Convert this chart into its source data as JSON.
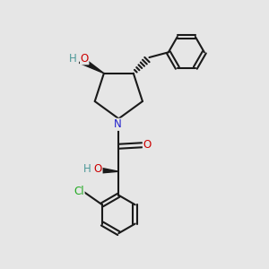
{
  "bg_color": "#e6e6e6",
  "atom_colors": {
    "C": "#1a1a1a",
    "O": "#cc0000",
    "N": "#2222cc",
    "Cl": "#22aa22",
    "H": "#4d9999"
  },
  "bond_color": "#1a1a1a",
  "font_size": 8.5
}
